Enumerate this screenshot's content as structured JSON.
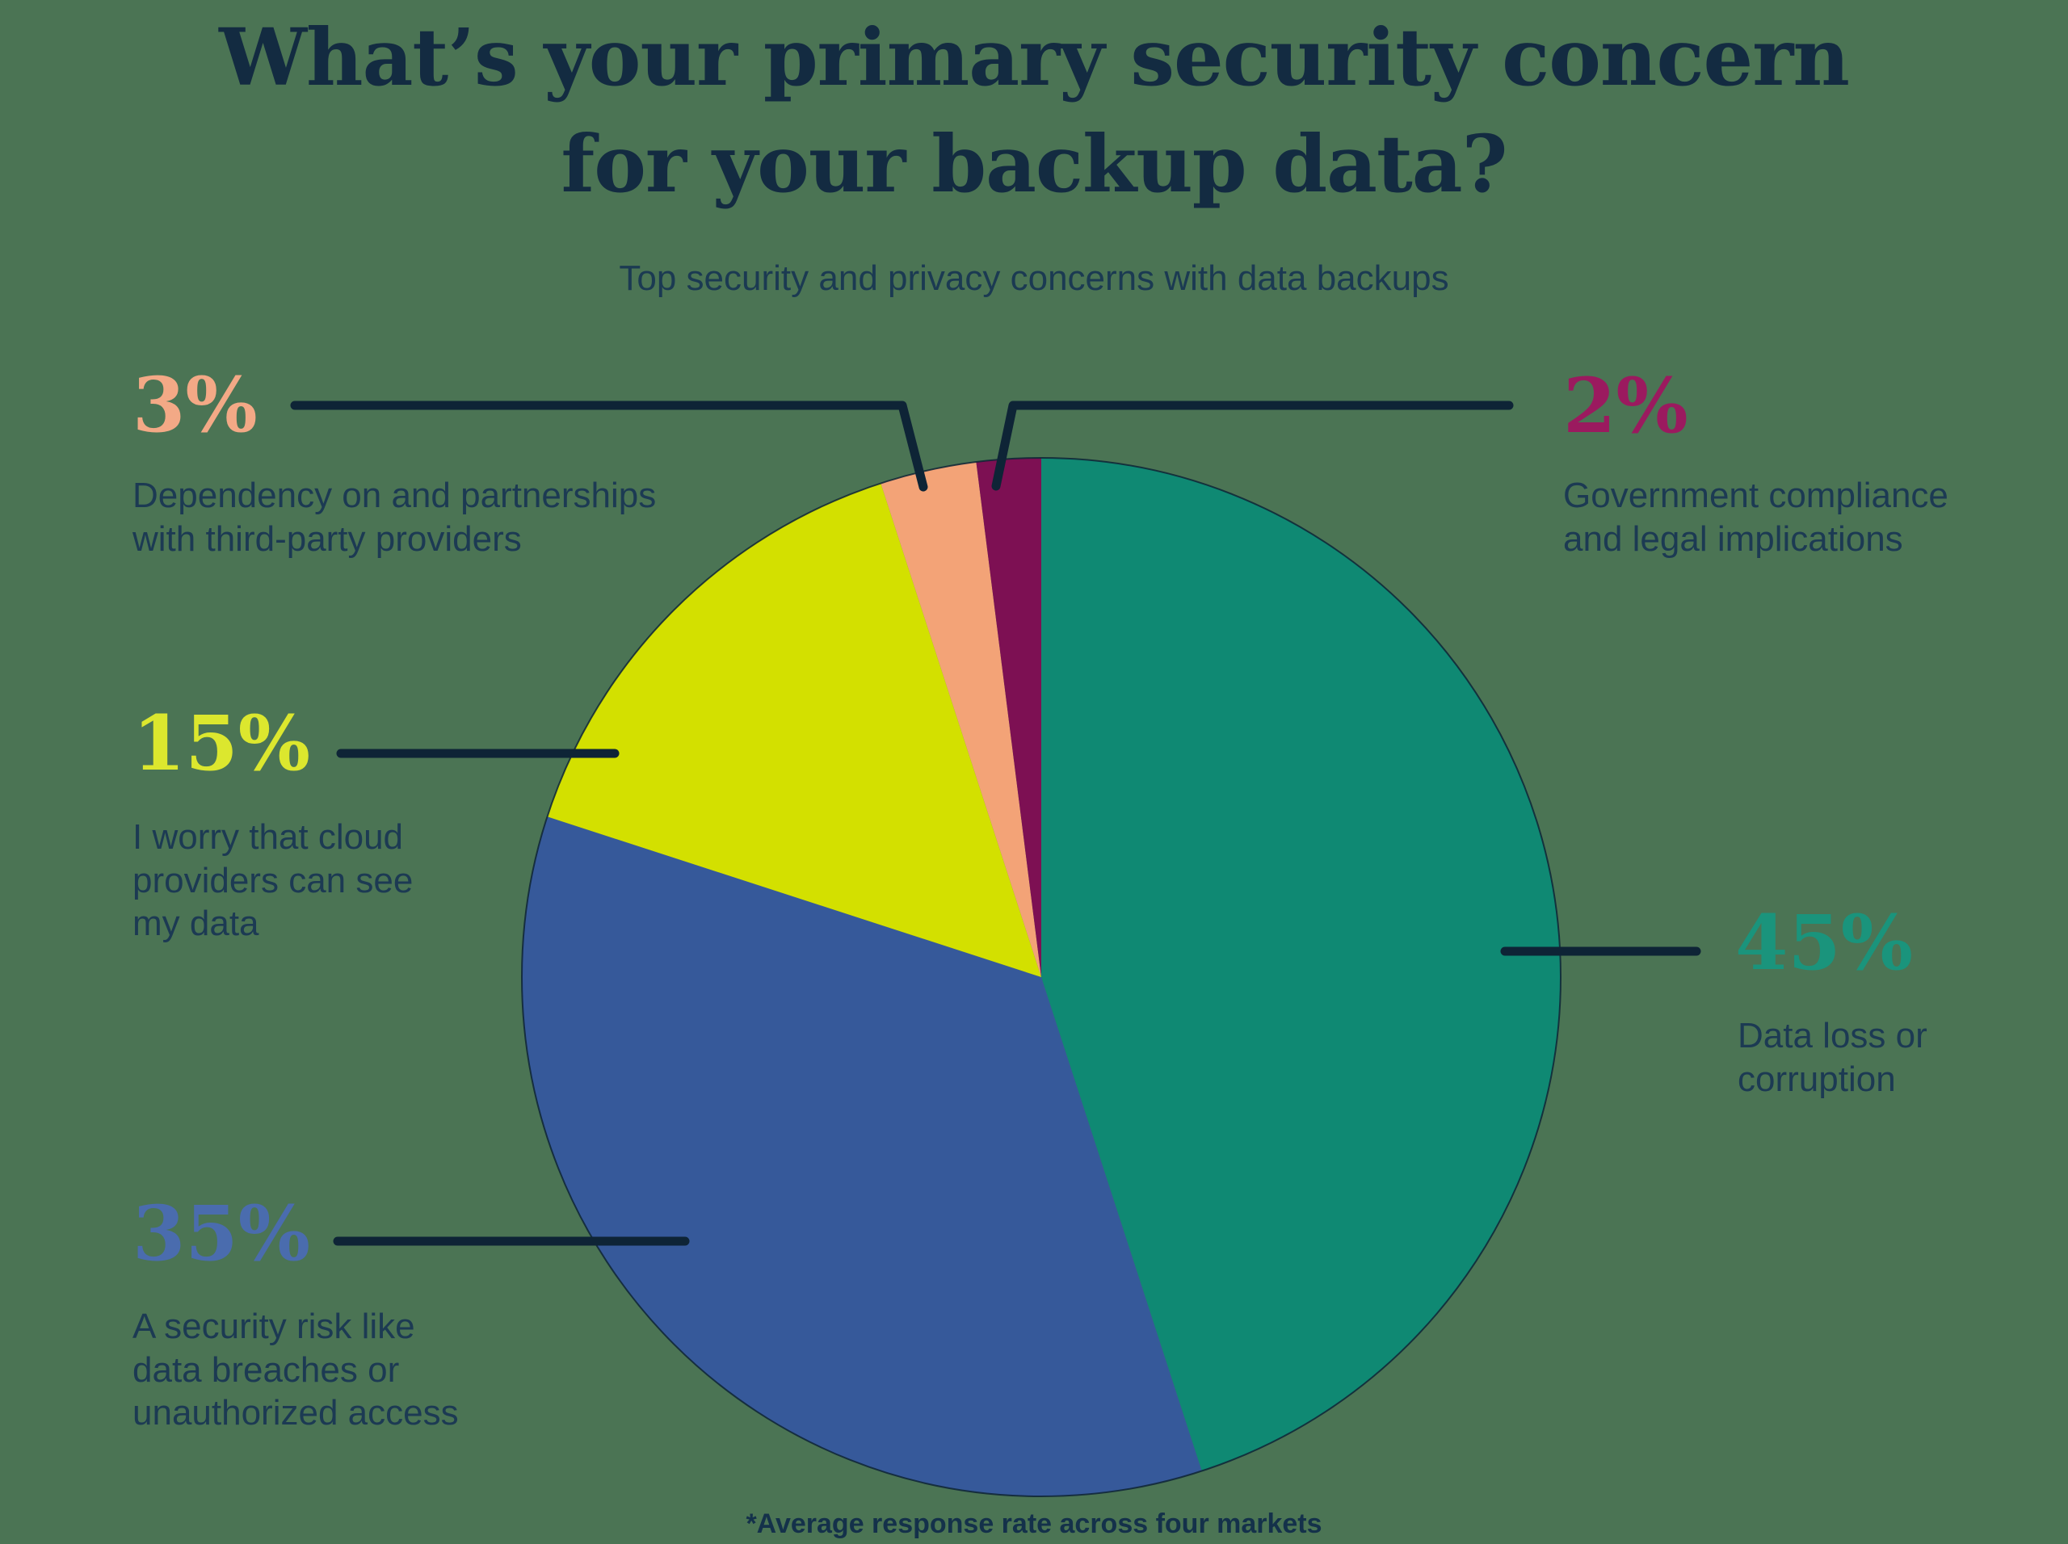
{
  "header": {
    "title_lines": [
      "What’s your primary security concern",
      "for your backup data?"
    ],
    "subtitle": "Top security and privacy concerns with data backups"
  },
  "footnote": "*Average response rate across four markets",
  "colors": {
    "background": "#4B7454",
    "title_text": "#132B41",
    "body_text": "#1C3A53",
    "leader_line": "#0E2436",
    "pie_outline": "#0E2436"
  },
  "chart_data": {
    "type": "pie",
    "title": "What’s your primary security concern for your backup data?",
    "subtitle": "Top security and privacy concerns with data backups",
    "footnote": "*Average response rate across four markets",
    "start_angle": "12 o'clock",
    "direction": "clockwise",
    "units": "percent",
    "slices": [
      {
        "id": "data-loss",
        "value": 45,
        "pct_label": "45%",
        "label": "Data loss or corruption",
        "label_display": "Data loss or\ncorruption",
        "color": "#0F8973",
        "label_color": "#1A947C"
      },
      {
        "id": "security-risk",
        "value": 35,
        "pct_label": "35%",
        "label": "A security risk like data breaches or unauthorized access",
        "label_display": "A security risk like\ndata breaches or\nunauthorized access",
        "color": "#36599A",
        "label_color": "#4A6CAE"
      },
      {
        "id": "cloud-providers-see-data",
        "value": 15,
        "pct_label": "15%",
        "label": "I worry that cloud providers can see my data",
        "label_display": "I worry that cloud\nproviders can see\nmy data",
        "color": "#D3E000",
        "label_color": "#DCE72E"
      },
      {
        "id": "third-party-dependency",
        "value": 3,
        "pct_label": "3%",
        "label": "Dependency on and partnerships with third-party providers",
        "label_display": "Dependency on and partnerships\nwith third-party providers",
        "color": "#F3A377",
        "label_color": "#F3A986"
      },
      {
        "id": "government-compliance",
        "value": 2,
        "pct_label": "2%",
        "label": "Government compliance and legal implications",
        "label_display": "Government compliance\nand legal implications",
        "color": "#7D1053",
        "label_color": "#9B1A5F"
      }
    ]
  }
}
